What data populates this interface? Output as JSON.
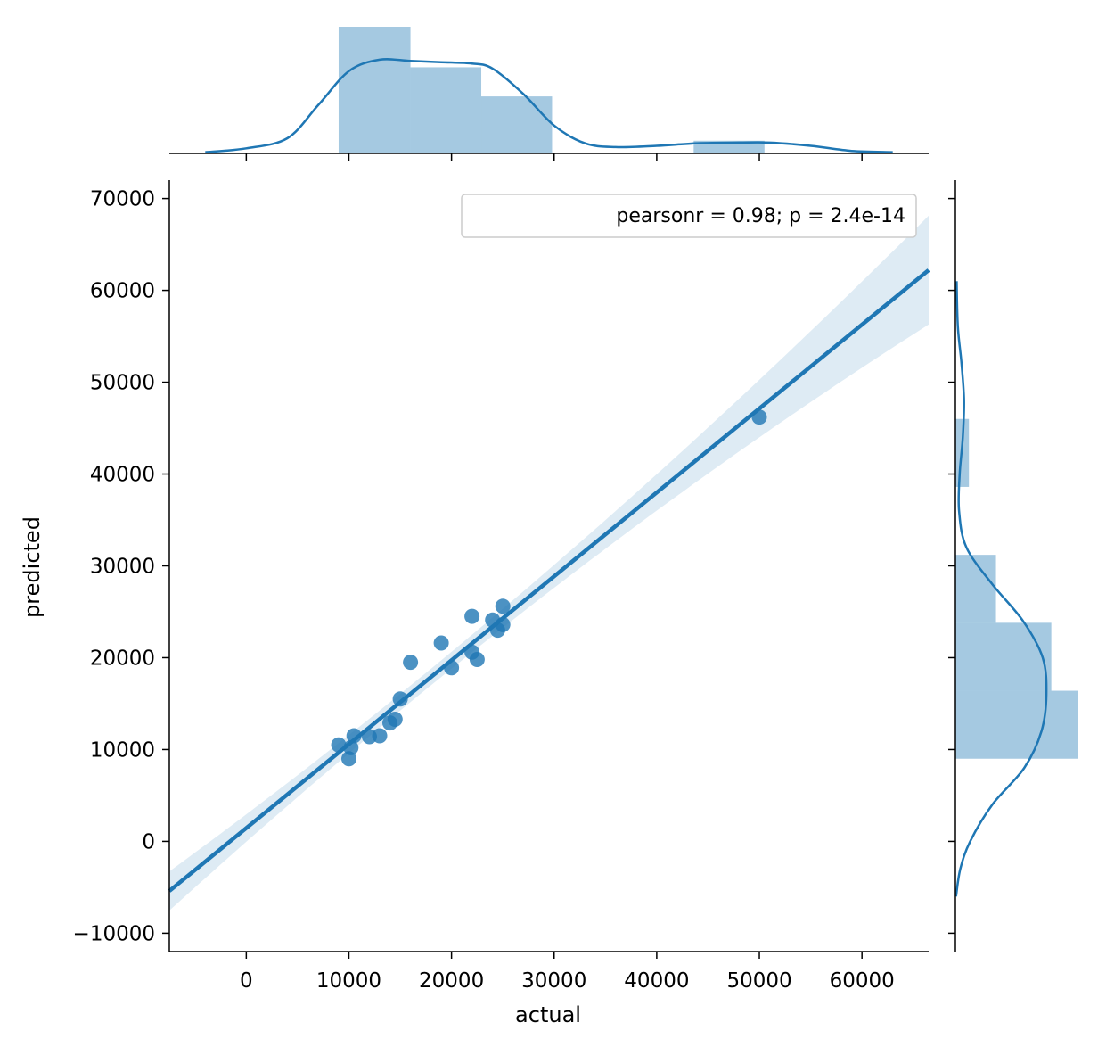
{
  "chart_data": {
    "type": "scatter",
    "xlabel": "actual",
    "ylabel": "predicted",
    "xlim": [
      -7500,
      66500
    ],
    "ylim": [
      -12000,
      72000
    ],
    "x_ticks": [
      0,
      10000,
      20000,
      30000,
      40000,
      50000,
      60000
    ],
    "y_ticks": [
      -10000,
      0,
      10000,
      20000,
      30000,
      40000,
      50000,
      60000,
      70000
    ],
    "annotation": "pearsonr = 0.98; p = 2.4e-14",
    "legend_position": "top-right",
    "grid": false,
    "points": [
      {
        "x": 9000,
        "y": 10500
      },
      {
        "x": 10000,
        "y": 9000
      },
      {
        "x": 10200,
        "y": 10200
      },
      {
        "x": 10500,
        "y": 11500
      },
      {
        "x": 12000,
        "y": 11400
      },
      {
        "x": 13000,
        "y": 11500
      },
      {
        "x": 14000,
        "y": 12900
      },
      {
        "x": 14500,
        "y": 13300
      },
      {
        "x": 15000,
        "y": 15500
      },
      {
        "x": 16000,
        "y": 19500
      },
      {
        "x": 19000,
        "y": 21600
      },
      {
        "x": 20000,
        "y": 18900
      },
      {
        "x": 22000,
        "y": 24500
      },
      {
        "x": 22000,
        "y": 20600
      },
      {
        "x": 22500,
        "y": 19800
      },
      {
        "x": 24000,
        "y": 24100
      },
      {
        "x": 24500,
        "y": 23000
      },
      {
        "x": 25000,
        "y": 25600
      },
      {
        "x": 25000,
        "y": 23600
      },
      {
        "x": 50000,
        "y": 46200
      }
    ],
    "regression": {
      "slope": 0.9136,
      "intercept": 1450
    },
    "marginal_x_histogram": {
      "bins": [
        [
          9000,
          16000,
          1.0
        ],
        [
          16000,
          22900,
          0.68
        ],
        [
          22900,
          29800,
          0.45
        ],
        [
          29800,
          36700,
          0
        ],
        [
          36700,
          43600,
          0
        ],
        [
          43600,
          50500,
          0.1
        ]
      ],
      "kde": [
        [
          -4000,
          0.01
        ],
        [
          0,
          0.04
        ],
        [
          4000,
          0.12
        ],
        [
          7000,
          0.38
        ],
        [
          10000,
          0.65
        ],
        [
          13000,
          0.74
        ],
        [
          16000,
          0.73
        ],
        [
          19000,
          0.72
        ],
        [
          22000,
          0.71
        ],
        [
          24000,
          0.67
        ],
        [
          27000,
          0.47
        ],
        [
          30000,
          0.22
        ],
        [
          33000,
          0.08
        ],
        [
          36000,
          0.05
        ],
        [
          40000,
          0.06
        ],
        [
          44000,
          0.08
        ],
        [
          48000,
          0.085
        ],
        [
          51000,
          0.085
        ],
        [
          55000,
          0.06
        ],
        [
          59000,
          0.02
        ],
        [
          63000,
          0.01
        ]
      ]
    },
    "marginal_y_histogram": {
      "bins": [
        [
          9000,
          16400,
          1.0
        ],
        [
          16400,
          23800,
          0.78
        ],
        [
          23800,
          31200,
          0.33
        ],
        [
          31200,
          38600,
          0
        ],
        [
          38600,
          46000,
          0.11
        ]
      ],
      "kde": [
        [
          -6000,
          0.005
        ],
        [
          -3000,
          0.04
        ],
        [
          0,
          0.12
        ],
        [
          4000,
          0.3
        ],
        [
          8000,
          0.56
        ],
        [
          12000,
          0.7
        ],
        [
          16000,
          0.74
        ],
        [
          20000,
          0.71
        ],
        [
          24000,
          0.55
        ],
        [
          28000,
          0.3
        ],
        [
          32000,
          0.09
        ],
        [
          36000,
          0.03
        ],
        [
          40000,
          0.035
        ],
        [
          44000,
          0.06
        ],
        [
          48000,
          0.07
        ],
        [
          52000,
          0.05
        ],
        [
          56000,
          0.02
        ],
        [
          61000,
          0.01
        ]
      ]
    }
  }
}
